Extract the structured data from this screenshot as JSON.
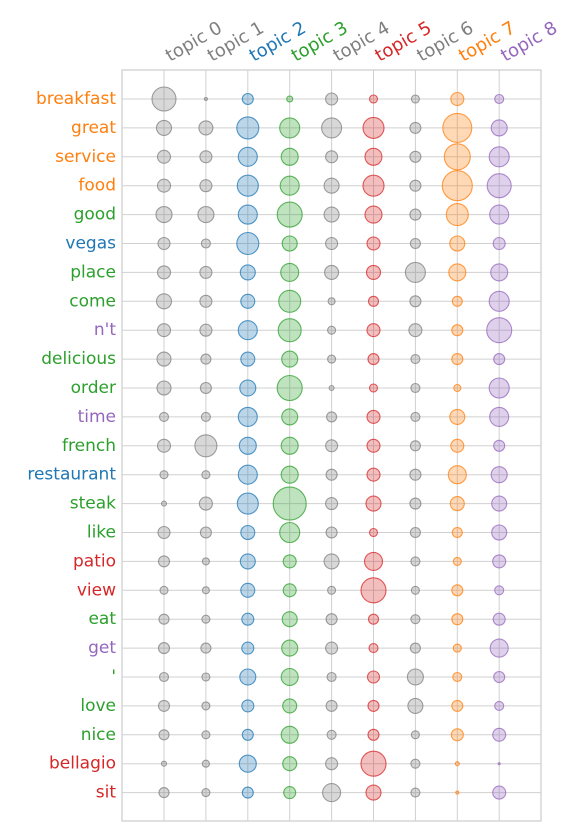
{
  "chart_data": {
    "type": "scatter",
    "title": "",
    "xlabel": "",
    "ylabel": "",
    "grid": true,
    "topics": [
      {
        "label": "topic 0",
        "color": "#7f7f7f"
      },
      {
        "label": "topic 1",
        "color": "#7f7f7f"
      },
      {
        "label": "topic 2",
        "color": "#1f77b4"
      },
      {
        "label": "topic 3",
        "color": "#2ca02c"
      },
      {
        "label": "topic 4",
        "color": "#7f7f7f"
      },
      {
        "label": "topic 5",
        "color": "#d62728"
      },
      {
        "label": "topic 6",
        "color": "#7f7f7f"
      },
      {
        "label": "topic 7",
        "color": "#ff7f0e"
      },
      {
        "label": "topic 8",
        "color": "#9467bd"
      }
    ],
    "words": [
      {
        "label": "breakfast",
        "color": "#ff7f0e"
      },
      {
        "label": "great",
        "color": "#ff7f0e"
      },
      {
        "label": "service",
        "color": "#ff7f0e"
      },
      {
        "label": "food",
        "color": "#ff7f0e"
      },
      {
        "label": "good",
        "color": "#2ca02c"
      },
      {
        "label": "vegas",
        "color": "#1f77b4"
      },
      {
        "label": "place",
        "color": "#2ca02c"
      },
      {
        "label": "come",
        "color": "#2ca02c"
      },
      {
        "label": "n't",
        "color": "#9467bd"
      },
      {
        "label": "delicious",
        "color": "#2ca02c"
      },
      {
        "label": "order",
        "color": "#2ca02c"
      },
      {
        "label": "time",
        "color": "#9467bd"
      },
      {
        "label": "french",
        "color": "#2ca02c"
      },
      {
        "label": "restaurant",
        "color": "#1f77b4"
      },
      {
        "label": "steak",
        "color": "#2ca02c"
      },
      {
        "label": "like",
        "color": "#2ca02c"
      },
      {
        "label": "patio",
        "color": "#d62728"
      },
      {
        "label": "view",
        "color": "#d62728"
      },
      {
        "label": "eat",
        "color": "#2ca02c"
      },
      {
        "label": "get",
        "color": "#9467bd"
      },
      {
        "label": "'",
        "color": "#2ca02c"
      },
      {
        "label": "love",
        "color": "#2ca02c"
      },
      {
        "label": "nice",
        "color": "#2ca02c"
      },
      {
        "label": "bellagio",
        "color": "#d62728"
      },
      {
        "label": "sit",
        "color": "#d62728"
      }
    ],
    "values": [
      [
        12,
        1.5,
        5.5,
        3,
        6,
        4,
        4,
        6.5,
        4.5
      ],
      [
        7.5,
        7,
        11,
        10,
        10,
        10.5,
        5.5,
        14.5,
        8
      ],
      [
        6.5,
        6,
        9.5,
        8.5,
        6,
        8.5,
        5.5,
        13,
        10
      ],
      [
        6.5,
        6,
        10.5,
        9.5,
        7.5,
        10.5,
        5.5,
        15,
        12
      ],
      [
        8,
        8,
        9.5,
        12.5,
        7.5,
        8.5,
        5.5,
        11,
        9.5
      ],
      [
        6,
        4.5,
        11,
        7.5,
        6,
        6.5,
        5,
        7.5,
        6
      ],
      [
        6.5,
        6,
        7.5,
        9,
        7,
        7,
        10,
        8.5,
        8.5
      ],
      [
        7.5,
        6,
        7,
        11,
        3.5,
        5,
        5.5,
        5,
        10
      ],
      [
        6.5,
        6,
        9.5,
        11.5,
        4,
        6.5,
        6.5,
        5.5,
        12.5
      ],
      [
        7,
        5,
        7,
        8,
        4,
        5.5,
        4.5,
        5.5,
        5.5
      ],
      [
        7,
        5.5,
        8,
        12.5,
        2.5,
        4,
        4.5,
        3.5,
        10
      ],
      [
        4.5,
        4.5,
        9.5,
        8,
        5,
        6.5,
        4.5,
        7.5,
        9.5
      ],
      [
        6.5,
        11,
        8.5,
        8.5,
        6,
        6.5,
        5,
        6.5,
        5.5
      ],
      [
        4,
        4,
        9.5,
        8.5,
        5.5,
        6.5,
        5.5,
        9,
        8
      ],
      [
        2.5,
        6.5,
        10.5,
        16.5,
        6,
        7.5,
        5.5,
        7,
        7.5
      ],
      [
        6,
        5.5,
        7,
        10,
        5.5,
        4,
        5,
        5,
        7.5
      ],
      [
        5.5,
        3.5,
        7.5,
        6.5,
        7.5,
        9,
        4.5,
        4,
        6.5
      ],
      [
        4,
        3.5,
        7,
        6.5,
        4,
        12.5,
        4,
        5.5,
        4.5
      ],
      [
        5,
        4,
        6,
        7.5,
        5.5,
        5,
        4.5,
        5.5,
        6
      ],
      [
        5.5,
        5,
        6,
        8,
        6,
        4.5,
        5,
        4,
        9
      ],
      [
        4.5,
        4,
        8,
        8.5,
        4.5,
        6,
        8,
        4.5,
        5.5
      ],
      [
        5.5,
        4,
        6,
        7,
        5.5,
        5.5,
        7.5,
        5.5,
        4.5
      ],
      [
        5,
        4,
        5.5,
        8.5,
        4.5,
        5.5,
        4,
        6,
        6.5
      ],
      [
        2.5,
        3.5,
        8.5,
        7,
        6,
        12.5,
        4.5,
        2,
        1
      ],
      [
        5,
        4,
        5.5,
        6,
        9,
        7.5,
        4.5,
        1.5,
        6.5
      ]
    ]
  }
}
